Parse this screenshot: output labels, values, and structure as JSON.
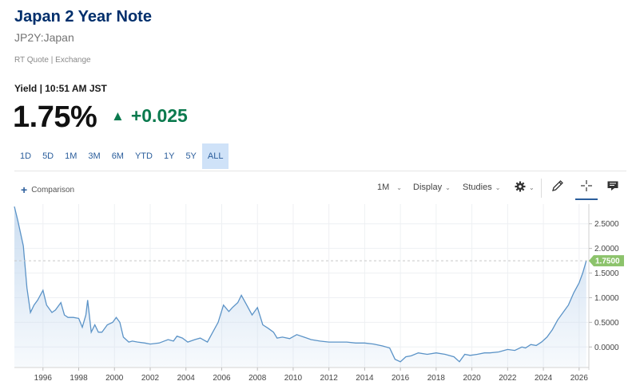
{
  "header": {
    "title": "Japan 2 Year Note",
    "symbol": "JP2Y:Japan",
    "quote_source": "RT Quote | Exchange",
    "yield_label": "Yield | 10:51 AM JST",
    "price": "1.75%",
    "change": "+0.025",
    "change_direction": "up",
    "change_color": "#0b7a4e"
  },
  "ranges": [
    {
      "label": "1D",
      "active": false
    },
    {
      "label": "5D",
      "active": false
    },
    {
      "label": "1M",
      "active": false
    },
    {
      "label": "3M",
      "active": false
    },
    {
      "label": "6M",
      "active": false
    },
    {
      "label": "YTD",
      "active": false
    },
    {
      "label": "1Y",
      "active": false
    },
    {
      "label": "5Y",
      "active": false
    },
    {
      "label": "ALL",
      "active": true
    }
  ],
  "toolbar": {
    "comparison_label": "Comparison",
    "interval_label": "1M",
    "display_label": "Display",
    "studies_label": "Studies",
    "icons": [
      "gear-icon",
      "pencil-icon",
      "crosshair-icon",
      "comment-icon"
    ]
  },
  "chart_data": {
    "type": "area",
    "line_color": "#5b93c7",
    "fill_color": "#c9dcf0",
    "current_marker_color": "#8cc36b",
    "current_value": 1.75,
    "current_value_label": "1.7500",
    "xlim": [
      1994.4,
      2026.5
    ],
    "ylim": [
      -0.4,
      2.9
    ],
    "x_ticks": [
      "1996",
      "1998",
      "2000",
      "2002",
      "2004",
      "2006",
      "2008",
      "2010",
      "2012",
      "2014",
      "2016",
      "2018",
      "2020",
      "2022",
      "2024",
      "2026"
    ],
    "y_ticks": [
      "2.5000",
      "2.0000",
      "1.5000",
      "1.0000",
      "0.5000",
      "0.0000"
    ],
    "x": [
      1994.4,
      1994.6,
      1994.9,
      1995.1,
      1995.3,
      1995.5,
      1995.7,
      1996.0,
      1996.2,
      1996.5,
      1996.7,
      1997.0,
      1997.2,
      1997.4,
      1997.7,
      1998.0,
      1998.2,
      1998.4,
      1998.5,
      1998.7,
      1998.9,
      1999.1,
      1999.3,
      1999.6,
      1999.9,
      2000.1,
      2000.3,
      2000.5,
      2000.8,
      2001.0,
      2001.3,
      2001.7,
      2002.0,
      2002.5,
      2003.0,
      2003.3,
      2003.5,
      2003.8,
      2004.1,
      2004.5,
      2004.8,
      2005.2,
      2005.5,
      2005.8,
      2006.1,
      2006.4,
      2006.6,
      2006.9,
      2007.1,
      2007.4,
      2007.7,
      2008.0,
      2008.3,
      2008.6,
      2008.9,
      2009.1,
      2009.4,
      2009.8,
      2010.2,
      2010.6,
      2011.0,
      2011.5,
      2012.0,
      2012.5,
      2013.0,
      2013.5,
      2014.0,
      2014.5,
      2015.0,
      2015.4,
      2015.7,
      2016.0,
      2016.3,
      2016.6,
      2017.0,
      2017.5,
      2018.0,
      2018.5,
      2019.0,
      2019.3,
      2019.6,
      2019.9,
      2020.3,
      2020.7,
      2021.0,
      2021.5,
      2022.0,
      2022.4,
      2022.8,
      2023.0,
      2023.3,
      2023.6,
      2023.9,
      2024.2,
      2024.5,
      2024.8,
      2025.1,
      2025.4,
      2025.7,
      2026.0,
      2026.2,
      2026.4
    ],
    "values": [
      2.85,
      2.55,
      2.05,
      1.2,
      0.7,
      0.85,
      0.95,
      1.15,
      0.85,
      0.7,
      0.75,
      0.9,
      0.65,
      0.6,
      0.6,
      0.58,
      0.4,
      0.65,
      0.95,
      0.3,
      0.45,
      0.3,
      0.3,
      0.45,
      0.5,
      0.6,
      0.5,
      0.2,
      0.1,
      0.12,
      0.1,
      0.08,
      0.06,
      0.08,
      0.15,
      0.12,
      0.22,
      0.18,
      0.1,
      0.15,
      0.18,
      0.1,
      0.3,
      0.5,
      0.85,
      0.72,
      0.8,
      0.9,
      1.05,
      0.85,
      0.65,
      0.8,
      0.45,
      0.38,
      0.3,
      0.18,
      0.2,
      0.17,
      0.25,
      0.2,
      0.15,
      0.12,
      0.1,
      0.1,
      0.1,
      0.08,
      0.08,
      0.06,
      0.02,
      -0.02,
      -0.25,
      -0.3,
      -0.2,
      -0.18,
      -0.12,
      -0.15,
      -0.12,
      -0.15,
      -0.2,
      -0.3,
      -0.15,
      -0.17,
      -0.15,
      -0.12,
      -0.12,
      -0.1,
      -0.05,
      -0.07,
      0.0,
      -0.02,
      0.05,
      0.03,
      0.1,
      0.2,
      0.35,
      0.55,
      0.7,
      0.85,
      1.1,
      1.3,
      1.5,
      1.75
    ]
  }
}
